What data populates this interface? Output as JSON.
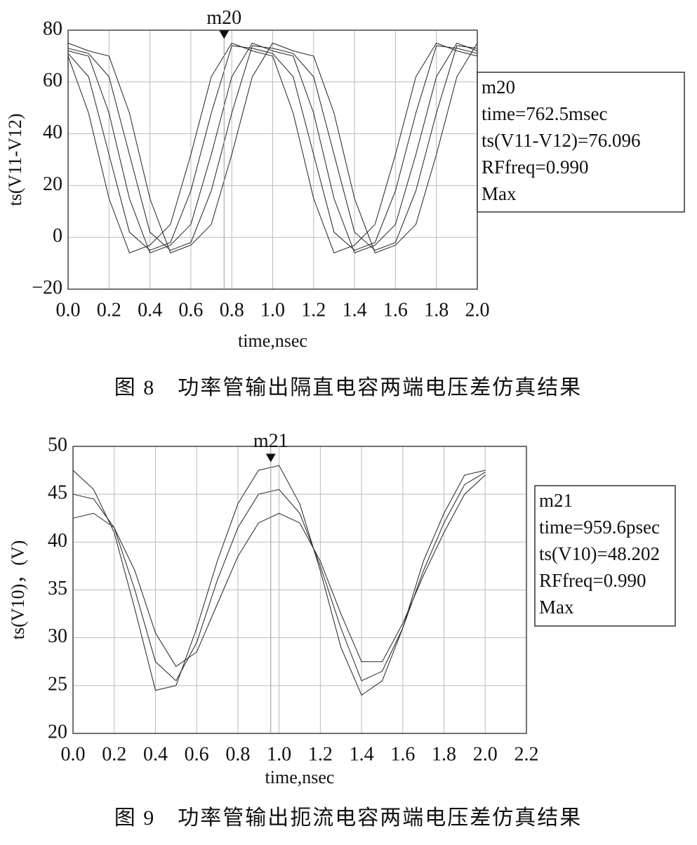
{
  "chart_data": [
    {
      "type": "line",
      "ylabel": "ts(V11-V12)",
      "xlabel": "time,nsec",
      "caption": "图 8　功率管输出隔直电容两端电压差仿真结果",
      "xlim": [
        0,
        2.0
      ],
      "ylim": [
        -20,
        80
      ],
      "xticks": [
        {
          "value": 0,
          "label": "0.0"
        },
        0.2,
        0.4,
        0.6,
        0.8,
        {
          "value": 1,
          "label": "1.0"
        },
        1.2,
        1.4,
        1.6,
        1.8,
        {
          "value": 2,
          "label": "2.0"
        }
      ],
      "yticks": [
        {
          "value": -20,
          "label": "−20"
        },
        0,
        20,
        40,
        60,
        80
      ],
      "grid": true,
      "x": [
        0,
        0.1,
        0.2,
        0.3,
        0.4,
        0.5,
        0.6,
        0.7,
        0.8,
        0.9,
        1.0,
        1.1,
        1.2,
        1.3,
        1.4,
        1.5,
        1.6,
        1.7,
        1.8,
        1.9,
        2.0
      ],
      "series": [
        {
          "color": "#222",
          "values": [
            70,
            48,
            15,
            -6,
            -3,
            5,
            32,
            62,
            75,
            72,
            70,
            48,
            15,
            -6,
            -3,
            5,
            32,
            62,
            75,
            72,
            70
          ]
        },
        {
          "color": "#222",
          "values": [
            71,
            62,
            32,
            2,
            -5,
            -2,
            18,
            48,
            74,
            73,
            71,
            62,
            32,
            2,
            -5,
            -2,
            18,
            48,
            74,
            73,
            71
          ]
        },
        {
          "color": "#222",
          "values": [
            72,
            70,
            48,
            15,
            -6,
            -3,
            5,
            32,
            62,
            75,
            72,
            70,
            48,
            15,
            -6,
            -3,
            5,
            32,
            62,
            75,
            72
          ]
        },
        {
          "color": "#222",
          "values": [
            73,
            71,
            62,
            32,
            2,
            -5,
            -2,
            18,
            48,
            74,
            73,
            71,
            62,
            32,
            2,
            -5,
            -2,
            18,
            48,
            74,
            73
          ]
        },
        {
          "color": "#222",
          "values": [
            75,
            72,
            70,
            48,
            15,
            -6,
            -3,
            5,
            32,
            62,
            75,
            72,
            70,
            48,
            15,
            -6,
            -3,
            5,
            32,
            62,
            75
          ]
        }
      ],
      "marker": {
        "label": "m20",
        "x": 0.7625,
        "y": 76.096
      },
      "marker_box": [
        "m20",
        "time=762.5msec",
        "ts(V11-V12)=76.096",
        "RFfreq=0.990",
        "Max"
      ]
    },
    {
      "type": "line",
      "ylabel": "ts(V10)，(V)",
      "xlabel": "time,nsec",
      "caption": "图 9　功率管输出扼流电容两端电压差仿真结果",
      "xlim": [
        0,
        2.2
      ],
      "ylim": [
        20,
        50
      ],
      "xticks": [
        {
          "value": 0,
          "label": "0.0"
        },
        0.2,
        0.4,
        0.6,
        0.8,
        {
          "value": 1,
          "label": "1.0"
        },
        1.2,
        1.4,
        1.6,
        1.8,
        {
          "value": 2,
          "label": "2.0"
        },
        2.2
      ],
      "yticks": [
        20,
        25,
        30,
        35,
        40,
        45,
        50
      ],
      "grid": true,
      "x": [
        0,
        0.1,
        0.2,
        0.3,
        0.4,
        0.5,
        0.6,
        0.7,
        0.8,
        0.9,
        1.0,
        1.1,
        1.2,
        1.3,
        1.4,
        1.5,
        1.6,
        1.7,
        1.8,
        1.9,
        2.0
      ],
      "series": [
        {
          "color": "#222",
          "values": [
            47.5,
            45.5,
            41,
            33,
            24.5,
            25,
            31,
            38,
            44,
            47.5,
            48,
            44,
            37,
            29,
            24,
            25.5,
            31,
            38,
            43,
            47,
            47.5
          ]
        },
        {
          "color": "#222",
          "values": [
            45,
            44.5,
            41.5,
            35,
            27.5,
            25.5,
            29.5,
            36,
            41.5,
            45,
            45.5,
            43,
            37.5,
            31,
            25.5,
            26.5,
            31,
            37,
            42,
            46,
            47.3
          ]
        },
        {
          "color": "#222",
          "values": [
            42.5,
            43,
            41.5,
            37,
            30.5,
            27,
            28.5,
            33.5,
            38.5,
            42,
            43,
            42,
            38,
            32.5,
            27.5,
            27.5,
            31.5,
            36.5,
            41,
            45,
            47
          ]
        }
      ],
      "marker": {
        "label": "m21",
        "x": 0.9596,
        "y": 48.202
      },
      "marker_box": [
        "m21",
        "time=959.6psec",
        "ts(V10)=48.202",
        "RFfreq=0.990",
        "Max"
      ]
    }
  ]
}
